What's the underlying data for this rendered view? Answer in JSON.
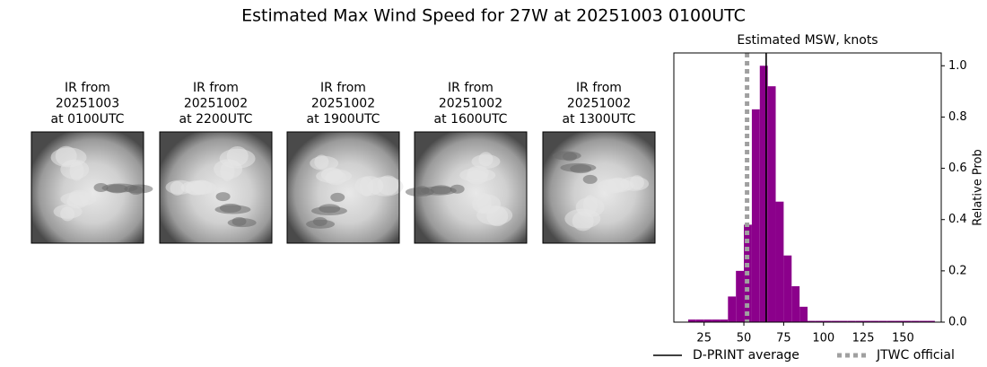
{
  "title": "Estimated Max Wind Speed for 27W at 20251003 0100UTC",
  "panels": [
    {
      "lines": [
        "IR from",
        "20251003",
        "at 0100UTC"
      ]
    },
    {
      "lines": [
        "IR from",
        "20251002",
        "at 2200UTC"
      ]
    },
    {
      "lines": [
        "IR from",
        "20251002",
        "at 1900UTC"
      ]
    },
    {
      "lines": [
        "IR from",
        "20251002",
        "at 1600UTC"
      ]
    },
    {
      "lines": [
        "IR from",
        "20251002",
        "at 1300UTC"
      ]
    }
  ],
  "chart_data": {
    "type": "histogram",
    "title": "Estimated MSW, knots",
    "bins": [
      15,
      20,
      25,
      30,
      35,
      40,
      45,
      50,
      55,
      60,
      65,
      70,
      75,
      80,
      85,
      90,
      95,
      100,
      105,
      110,
      115,
      120,
      125,
      130,
      135,
      140,
      145,
      150,
      155,
      160,
      165,
      170
    ],
    "values": [
      0.01,
      0.01,
      0.01,
      0.01,
      0.01,
      0.1,
      0.2,
      0.38,
      0.83,
      1.0,
      0.92,
      0.47,
      0.26,
      0.14,
      0.06,
      0.005,
      0.005,
      0.005,
      0.005,
      0.005,
      0.005,
      0.005,
      0.005,
      0.005,
      0.005,
      0.005,
      0.005,
      0.005,
      0.005,
      0.005,
      0.005
    ],
    "color": "#8b008b",
    "xlim": [
      6,
      174
    ],
    "xticks": [
      25,
      50,
      75,
      100,
      125,
      150
    ],
    "ylim": [
      0,
      1.05
    ],
    "yticks": [
      {
        "value": 0,
        "label": "0.0"
      },
      0.2,
      0.4,
      0.6,
      0.8,
      {
        "value": 1,
        "label": "1.0"
      }
    ],
    "y_label": "Relative Prob",
    "y_axis_side": "right",
    "reference_lines": [
      {
        "name": "D-PRINT average",
        "value": 64,
        "color": "#000000",
        "style": "solid"
      },
      {
        "name": "JTWC official",
        "value": 52,
        "color": "#a0a0a0",
        "style": "dotted"
      }
    ]
  }
}
